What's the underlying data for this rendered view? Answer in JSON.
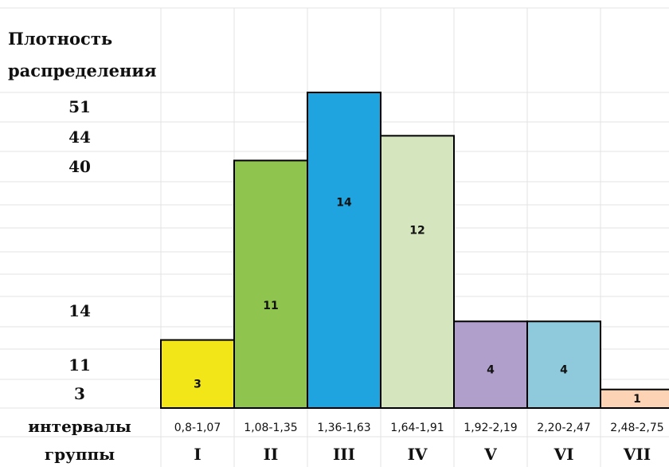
{
  "chart_data": {
    "type": "bar",
    "ylabel": [
      "Плотность",
      "распределения"
    ],
    "y_tick_labels": [
      {
        "label": "51",
        "value": 51
      },
      {
        "label": "44",
        "value": 44
      },
      {
        "label": "40",
        "value": 40
      },
      {
        "label": "14",
        "value": 14
      },
      {
        "label": "11",
        "value": 11
      },
      {
        "label": "3",
        "value": 3
      }
    ],
    "row_labels": {
      "intervals": "интервалы",
      "groups": "группы"
    },
    "categories": [
      "I",
      "II",
      "III",
      "IV",
      "V",
      "VI",
      "VII"
    ],
    "intervals": [
      "0,8-1,07",
      "1,08-1,35",
      "1,36-1,63",
      "1,64-1,91",
      "1,92-2,19",
      "2,20-2,47",
      "2,48-2,75"
    ],
    "values": [
      11,
      40,
      51,
      44,
      14,
      14,
      3
    ],
    "counts": [
      "3",
      "11",
      "14",
      "12",
      "4",
      "4",
      "1"
    ],
    "colors": [
      "#f2e619",
      "#8fc54f",
      "#1fa4e0",
      "#d5e5bd",
      "#b19fcb",
      "#8ec9dc",
      "#fcd3b4"
    ],
    "ylim": [
      0,
      55
    ],
    "grid": true,
    "legend": "none"
  }
}
